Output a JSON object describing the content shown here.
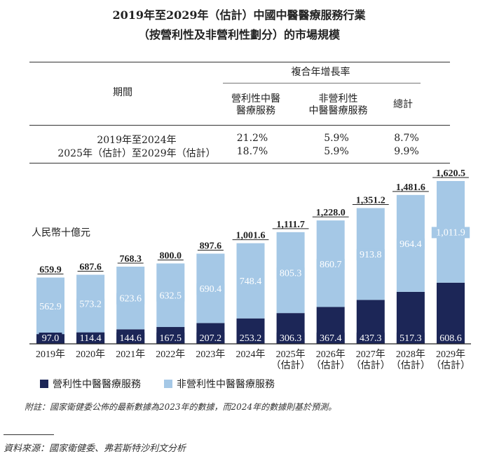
{
  "title": "2019年至2029年（估計）中國中醫醫療服務行業",
  "subtitle": "（按營利性及非營利性劃分）的市場規模",
  "cagr_table": {
    "group_header": "複合年增長率",
    "period_header": "期間",
    "columns": [
      "營利性中醫\n醫療服務",
      "非營利性\n中醫醫療服務",
      "總計"
    ],
    "rows": [
      {
        "period": "2019年至2024年",
        "values": [
          "21.2%",
          "5.9%",
          "8.7%"
        ]
      },
      {
        "period": "2025年（估計）至2029年（估計）",
        "values": [
          "18.7%",
          "5.9%",
          "9.9%"
        ]
      }
    ]
  },
  "chart_data": {
    "type": "stacked-bar",
    "ylabel": "人民幣十億元",
    "categories": [
      "2019年",
      "2020年",
      "2021年",
      "2022年",
      "2023年",
      "2024年",
      "2025年\n（估計）",
      "2026年\n（估計）",
      "2027年\n（估計）",
      "2028年\n（估計）",
      "2029年\n（估計）"
    ],
    "series": [
      {
        "name": "營利性中醫醫療服務",
        "color": "#1c2657",
        "values": [
          97.0,
          114.4,
          144.6,
          167.5,
          207.2,
          253.2,
          306.3,
          367.4,
          437.3,
          517.3,
          608.6
        ]
      },
      {
        "name": "非營利性中醫醫療服務",
        "color": "#a5c8e6",
        "values": [
          562.9,
          573.2,
          623.6,
          632.5,
          690.4,
          748.4,
          805.3,
          860.7,
          913.8,
          964.4,
          1011.9
        ]
      }
    ],
    "totals": [
      659.9,
      687.6,
      768.3,
      800.0,
      897.6,
      1001.6,
      1111.7,
      1228.0,
      1351.2,
      1481.6,
      1620.5
    ],
    "legend_position": "bottom",
    "grid": false
  },
  "note": "附註：國家衛健委公佈的最新數據為2023年的數據，而2024年的數據則基於預測。",
  "source": "資料來源：國家衛健委、弗若斯特沙利文分析"
}
